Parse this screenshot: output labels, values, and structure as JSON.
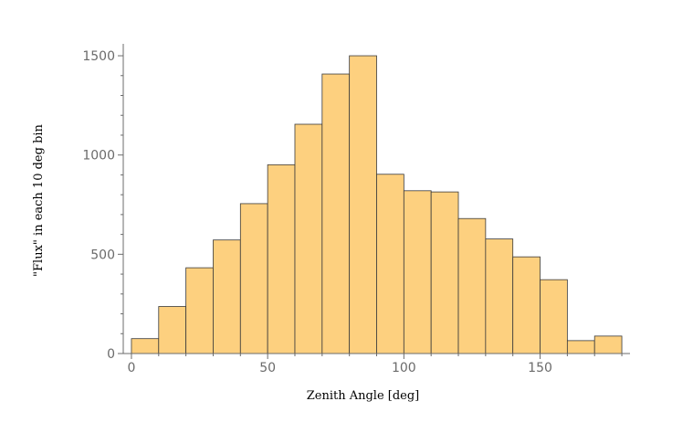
{
  "chart_data": {
    "type": "bar",
    "title": "",
    "xlabel": "Zenith Angle [deg]",
    "ylabel": "\"Flux\" in each 10 deg bin",
    "bin_width": 10,
    "bins": [
      {
        "start": 0,
        "value": 75
      },
      {
        "start": 10,
        "value": 237
      },
      {
        "start": 20,
        "value": 432
      },
      {
        "start": 30,
        "value": 572
      },
      {
        "start": 40,
        "value": 755
      },
      {
        "start": 50,
        "value": 951
      },
      {
        "start": 60,
        "value": 1155
      },
      {
        "start": 70,
        "value": 1408
      },
      {
        "start": 80,
        "value": 1500
      },
      {
        "start": 90,
        "value": 903
      },
      {
        "start": 100,
        "value": 820
      },
      {
        "start": 110,
        "value": 814
      },
      {
        "start": 120,
        "value": 680
      },
      {
        "start": 130,
        "value": 577
      },
      {
        "start": 140,
        "value": 487
      },
      {
        "start": 150,
        "value": 372
      },
      {
        "start": 160,
        "value": 65
      },
      {
        "start": 170,
        "value": 88
      }
    ],
    "xlim": [
      -3,
      183
    ],
    "ylim": [
      0,
      1560
    ],
    "xticks": [
      0,
      50,
      100,
      150
    ],
    "yticks": [
      0,
      500,
      1000,
      1500
    ],
    "grid": false,
    "bar_color": "#fdd07f",
    "edge_color": "#3a3a3a",
    "axis_color": "#6b6b6b"
  }
}
